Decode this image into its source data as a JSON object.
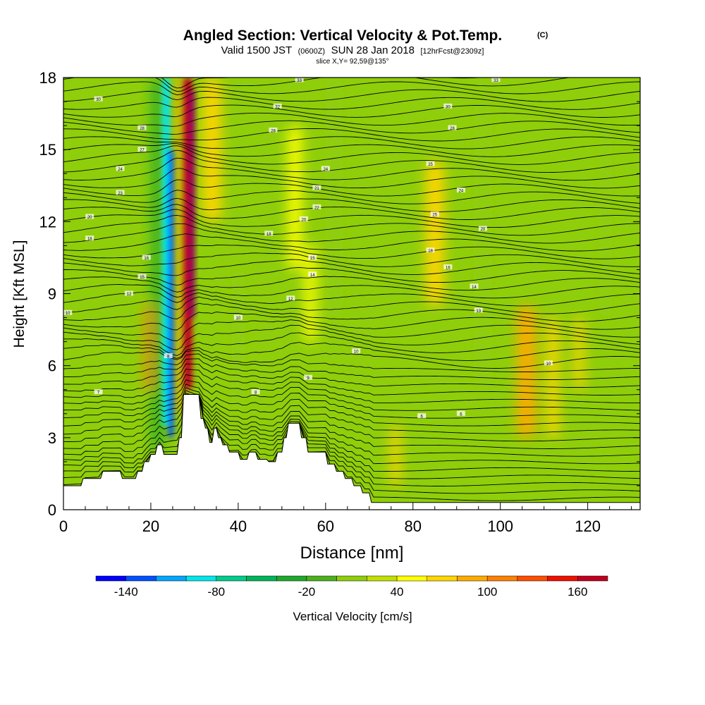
{
  "chart_data": {
    "type": "heatmap",
    "title": "Angled Section: Vertical Velocity & Pot.Temp.",
    "title_unit": "(C)",
    "subtitle_parts": [
      "Valid 1500 JST",
      "(0600Z)",
      "SUN 28 Jan 2018",
      "[12hrFcst@2309z]"
    ],
    "slice_label": "slice X,Y= 92,59@135°",
    "xlabel": "Distance [nm]",
    "ylabel": "Height [Kft MSL]",
    "xlim": [
      0,
      132
    ],
    "ylim": [
      0,
      18
    ],
    "x_ticks": [
      "0",
      "20",
      "40",
      "60",
      "80",
      "100",
      "120"
    ],
    "y_ticks": [
      "0",
      "3",
      "6",
      "9",
      "12",
      "15",
      "18"
    ],
    "grid": false,
    "colorbar": {
      "label": "Vertical Velocity [cm/s]",
      "tick_labels": [
        "-140",
        "-80",
        "-20",
        "40",
        "100",
        "160"
      ],
      "bins": [
        -160,
        -140,
        -120,
        -100,
        -80,
        -60,
        -40,
        -20,
        0,
        20,
        40,
        60,
        80,
        100,
        120,
        140,
        160,
        180
      ],
      "colors": [
        "#0000ff",
        "#0050ff",
        "#00a6ff",
        "#00e6ea",
        "#00cc8c",
        "#00b45a",
        "#1fa82c",
        "#4cb01c",
        "#8fce0a",
        "#c2e000",
        "#ffff00",
        "#ffd600",
        "#ffaa00",
        "#ff8000",
        "#ff4e00",
        "#ee1000",
        "#c00020",
        "#900060",
        "#660080"
      ]
    },
    "vertical_velocity_features": [
      {
        "x": 21.5,
        "ylo": 2.5,
        "yhi": 18,
        "width": 2.2,
        "value": -60
      },
      {
        "x": 23.5,
        "ylo": 3.5,
        "yhi": 18,
        "width": 1.8,
        "value": -120
      },
      {
        "x": 24.6,
        "ylo": 3.0,
        "yhi": 15,
        "width": 1.2,
        "value": -150
      },
      {
        "x": 26.5,
        "ylo": 4.0,
        "yhi": 18,
        "width": 1.6,
        "value": 60
      },
      {
        "x": 28.5,
        "ylo": 5.0,
        "yhi": 18,
        "width": 2.0,
        "value": 140
      },
      {
        "x": 29.5,
        "ylo": 8.0,
        "yhi": 17.5,
        "width": 1.2,
        "value": 170
      },
      {
        "x": 19.5,
        "ylo": 5.0,
        "yhi": 8.5,
        "width": 1.5,
        "value": 80
      },
      {
        "x": 34.0,
        "ylo": 12.0,
        "yhi": 18,
        "width": 4.0,
        "value": 40
      },
      {
        "x": 53.0,
        "ylo": 10.0,
        "yhi": 16.0,
        "width": 3.0,
        "value": 30
      },
      {
        "x": 56.5,
        "ylo": 7.0,
        "yhi": 11.0,
        "width": 2.5,
        "value": 30
      },
      {
        "x": 85.0,
        "ylo": 8.5,
        "yhi": 14.5,
        "width": 4.0,
        "value": 40
      },
      {
        "x": 106.0,
        "ylo": 3.0,
        "yhi": 8.5,
        "width": 4.0,
        "value": 60
      },
      {
        "x": 112.0,
        "ylo": 3.0,
        "yhi": 8.0,
        "width": 2.5,
        "value": 55
      },
      {
        "x": 118.0,
        "ylo": 5.0,
        "yhi": 8.0,
        "width": 2.0,
        "value": 40
      },
      {
        "x": 76.0,
        "ylo": 1.0,
        "yhi": 3.5,
        "width": 2.0,
        "value": 40
      },
      {
        "x": 62.0,
        "ylo": 8.0,
        "yhi": 18,
        "width": 4.0,
        "value": -20
      },
      {
        "x": 96.0,
        "ylo": 5.0,
        "yhi": 17.0,
        "width": 4.0,
        "value": -20
      },
      {
        "x": 124.0,
        "ylo": 8.0,
        "yhi": 16.0,
        "width": 3.0,
        "value": -20
      },
      {
        "x": 40.0,
        "ylo": 4.0,
        "yhi": 10.0,
        "width": 3.0,
        "value": -20
      }
    ],
    "terrain_height": [
      [
        0,
        1.0
      ],
      [
        4,
        1.0
      ],
      [
        4.5,
        1.3
      ],
      [
        8.5,
        1.3
      ],
      [
        9,
        1.6
      ],
      [
        13,
        1.6
      ],
      [
        13.5,
        1.3
      ],
      [
        16.5,
        1.3
      ],
      [
        17,
        1.6
      ],
      [
        18,
        1.6
      ],
      [
        18.5,
        2.0
      ],
      [
        19.5,
        2.0
      ],
      [
        20,
        2.3
      ],
      [
        21,
        2.3
      ],
      [
        21.5,
        2.7
      ],
      [
        22.5,
        2.7
      ],
      [
        23,
        2.3
      ],
      [
        26,
        2.3
      ],
      [
        26.5,
        3.0
      ],
      [
        27,
        3.0
      ],
      [
        27.5,
        4.8
      ],
      [
        31,
        4.8
      ],
      [
        31.5,
        3.8
      ],
      [
        32,
        3.8
      ],
      [
        32.5,
        3.4
      ],
      [
        33,
        3.4
      ],
      [
        33.5,
        2.8
      ],
      [
        34,
        2.8
      ],
      [
        34.5,
        3.4
      ],
      [
        35,
        3.4
      ],
      [
        35.5,
        3.0
      ],
      [
        36,
        3.0
      ],
      [
        36.5,
        2.7
      ],
      [
        37.5,
        2.7
      ],
      [
        38,
        2.4
      ],
      [
        40,
        2.4
      ],
      [
        40.5,
        2.1
      ],
      [
        42,
        2.1
      ],
      [
        42.5,
        2.4
      ],
      [
        44,
        2.4
      ],
      [
        44.5,
        2.1
      ],
      [
        46.5,
        2.1
      ],
      [
        47,
        2.0
      ],
      [
        48.5,
        2.0
      ],
      [
        49,
        2.4
      ],
      [
        50,
        2.4
      ],
      [
        50.5,
        3.0
      ],
      [
        51,
        3.0
      ],
      [
        51.5,
        3.6
      ],
      [
        54,
        3.6
      ],
      [
        54.5,
        3.0
      ],
      [
        55.5,
        3.0
      ],
      [
        56,
        2.4
      ],
      [
        60,
        2.4
      ],
      [
        60.5,
        1.9
      ],
      [
        62,
        1.9
      ],
      [
        62.5,
        1.6
      ],
      [
        64,
        1.6
      ],
      [
        64.5,
        1.3
      ],
      [
        66,
        1.3
      ],
      [
        66.5,
        1.0
      ],
      [
        68,
        1.0
      ],
      [
        68.5,
        0.7
      ],
      [
        70,
        0.7
      ],
      [
        70.5,
        0.3
      ],
      [
        132,
        0.3
      ]
    ],
    "theta_contours": {
      "base_levels": [
        0,
        1,
        2,
        3,
        4,
        5,
        6,
        7,
        8,
        9,
        10,
        11,
        12,
        13,
        14,
        15,
        16,
        17,
        18,
        19,
        20,
        21,
        22,
        23,
        24,
        25,
        26,
        27,
        28,
        29,
        30,
        31,
        32,
        33,
        34,
        35,
        36,
        37,
        38,
        39,
        40,
        41,
        42,
        43,
        44,
        45,
        46,
        47,
        48,
        49,
        50,
        51,
        52,
        53,
        54,
        55
      ],
      "labels": [
        {
          "x": 8,
          "y": 17.1,
          "text": "30"
        },
        {
          "x": 18,
          "y": 15.9,
          "text": "28"
        },
        {
          "x": 18,
          "y": 15.0,
          "text": "27"
        },
        {
          "x": 13,
          "y": 14.2,
          "text": "24"
        },
        {
          "x": 13,
          "y": 13.2,
          "text": "23"
        },
        {
          "x": 6,
          "y": 12.2,
          "text": "20"
        },
        {
          "x": 6,
          "y": 11.3,
          "text": "18"
        },
        {
          "x": 19,
          "y": 10.5,
          "text": "16"
        },
        {
          "x": 18,
          "y": 9.7,
          "text": "15"
        },
        {
          "x": 15,
          "y": 9.0,
          "text": "12"
        },
        {
          "x": 1,
          "y": 8.2,
          "text": "10"
        },
        {
          "x": 24,
          "y": 6.4,
          "text": "8"
        },
        {
          "x": 8,
          "y": 4.9,
          "text": "7"
        },
        {
          "x": 54,
          "y": 17.9,
          "text": "33"
        },
        {
          "x": 49,
          "y": 16.8,
          "text": "32"
        },
        {
          "x": 48,
          "y": 15.8,
          "text": "28"
        },
        {
          "x": 60,
          "y": 14.2,
          "text": "24"
        },
        {
          "x": 58,
          "y": 13.4,
          "text": "21"
        },
        {
          "x": 58,
          "y": 12.6,
          "text": "22"
        },
        {
          "x": 55,
          "y": 12.1,
          "text": "20"
        },
        {
          "x": 47,
          "y": 11.5,
          "text": "18"
        },
        {
          "x": 57,
          "y": 10.5,
          "text": "15"
        },
        {
          "x": 57,
          "y": 9.8,
          "text": "14"
        },
        {
          "x": 52,
          "y": 8.8,
          "text": "12"
        },
        {
          "x": 40,
          "y": 8.0,
          "text": "10"
        },
        {
          "x": 67,
          "y": 6.6,
          "text": "10"
        },
        {
          "x": 56,
          "y": 5.5,
          "text": "9"
        },
        {
          "x": 44,
          "y": 4.9,
          "text": "8"
        },
        {
          "x": 82,
          "y": 3.9,
          "text": "6"
        },
        {
          "x": 91,
          "y": 4.0,
          "text": "6"
        },
        {
          "x": 99,
          "y": 17.9,
          "text": "33"
        },
        {
          "x": 88,
          "y": 16.8,
          "text": "30"
        },
        {
          "x": 89,
          "y": 15.9,
          "text": "28"
        },
        {
          "x": 84,
          "y": 14.4,
          "text": "25"
        },
        {
          "x": 91,
          "y": 13.3,
          "text": "24"
        },
        {
          "x": 85,
          "y": 12.3,
          "text": "25"
        },
        {
          "x": 96,
          "y": 11.7,
          "text": "20"
        },
        {
          "x": 84,
          "y": 10.8,
          "text": "18"
        },
        {
          "x": 88,
          "y": 10.1,
          "text": "16"
        },
        {
          "x": 94,
          "y": 9.3,
          "text": "14"
        },
        {
          "x": 95,
          "y": 8.3,
          "text": "13"
        },
        {
          "x": 111,
          "y": 6.1,
          "text": "10"
        }
      ]
    }
  }
}
